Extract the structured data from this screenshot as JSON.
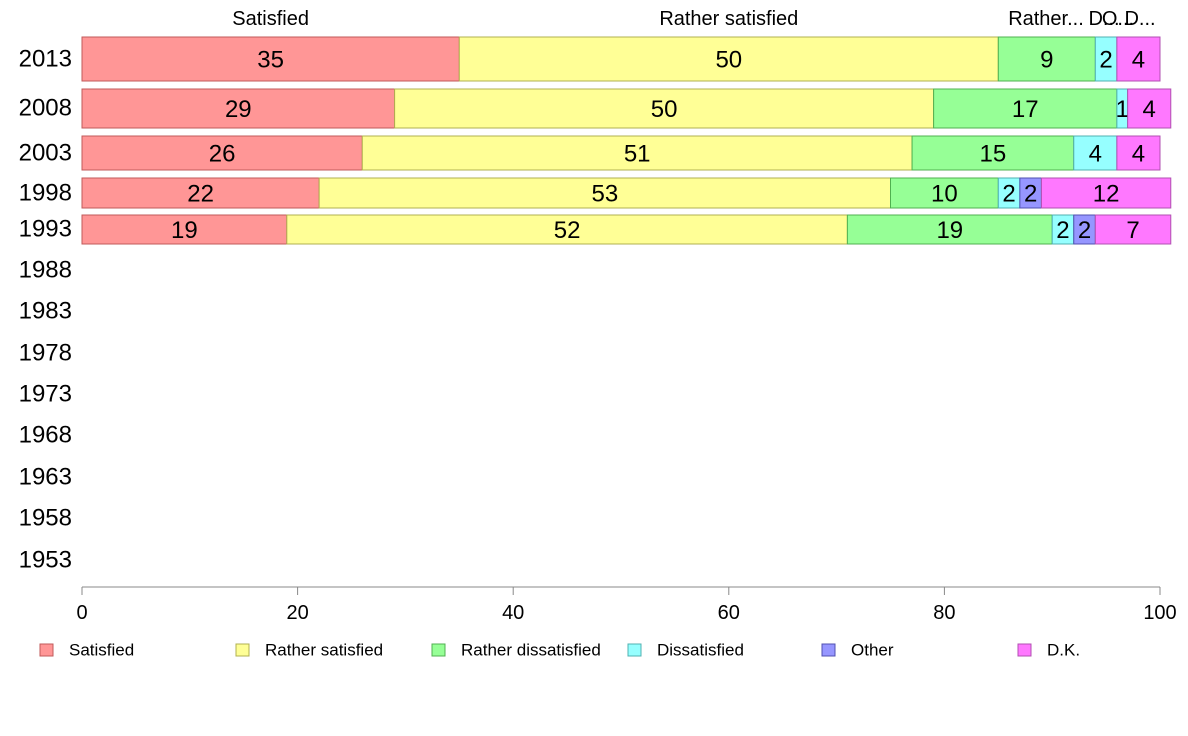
{
  "chart_data": {
    "type": "bar",
    "orientation": "horizontal",
    "stacked": true,
    "categories": [
      "2013",
      "2008",
      "2003",
      "1998",
      "1993",
      "1988",
      "1983",
      "1978",
      "1973",
      "1968",
      "1963",
      "1958",
      "1953"
    ],
    "series": [
      {
        "name": "Satisfied",
        "color": "#ff9696",
        "stroke": "#c05a5a",
        "values": [
          35,
          29,
          26,
          22,
          19,
          null,
          null,
          null,
          null,
          null,
          null,
          null,
          null
        ]
      },
      {
        "name": "Rather satisfied",
        "color": "#ffff96",
        "stroke": "#b0b050",
        "values": [
          50,
          50,
          51,
          53,
          52,
          null,
          null,
          null,
          null,
          null,
          null,
          null,
          null
        ]
      },
      {
        "name": "Rather dissatisfied",
        "color": "#96ff96",
        "stroke": "#50b050",
        "values": [
          9,
          17,
          15,
          10,
          19,
          null,
          null,
          null,
          null,
          null,
          null,
          null,
          null
        ]
      },
      {
        "name": "Dissatisfied",
        "color": "#96ffff",
        "stroke": "#50b0b0",
        "values": [
          2,
          1,
          4,
          2,
          2,
          null,
          null,
          null,
          null,
          null,
          null,
          null,
          null
        ]
      },
      {
        "name": "Other",
        "color": "#9696ff",
        "stroke": "#5050b0",
        "values": [
          0,
          0,
          0,
          2,
          2,
          null,
          null,
          null,
          null,
          null,
          null,
          null,
          null
        ]
      },
      {
        "name": "D.K.",
        "color": "#ff78ff",
        "stroke": "#b050b0",
        "values": [
          4,
          4,
          4,
          12,
          7,
          null,
          null,
          null,
          null,
          null,
          null,
          null,
          null
        ]
      }
    ],
    "data_labels": [
      [
        "35",
        "50",
        "9",
        "2",
        "",
        "4"
      ],
      [
        "29",
        "50",
        "17",
        "1",
        "",
        "4"
      ],
      [
        "26",
        "51",
        "15",
        "4",
        "",
        "4"
      ],
      [
        "22",
        "53",
        "10",
        "2",
        "2",
        "12"
      ],
      [
        "19",
        "52",
        "19",
        "2",
        "2",
        "7"
      ]
    ],
    "top_headers": [
      "Satisfied",
      "Rather satisfied",
      "Rather...",
      "D...",
      "O...",
      "D..."
    ],
    "xlim": [
      0,
      100
    ],
    "xticks": [
      "0",
      "20",
      "40",
      "60",
      "80",
      "100"
    ],
    "legend": {
      "position": "bottom",
      "entries": [
        "Satisfied",
        "Rather satisfied",
        "Rather dissatisfied",
        "Dissatisfied",
        "Other",
        "D.K."
      ]
    },
    "grid": false,
    "title": "",
    "xlabel": "",
    "ylabel": ""
  }
}
